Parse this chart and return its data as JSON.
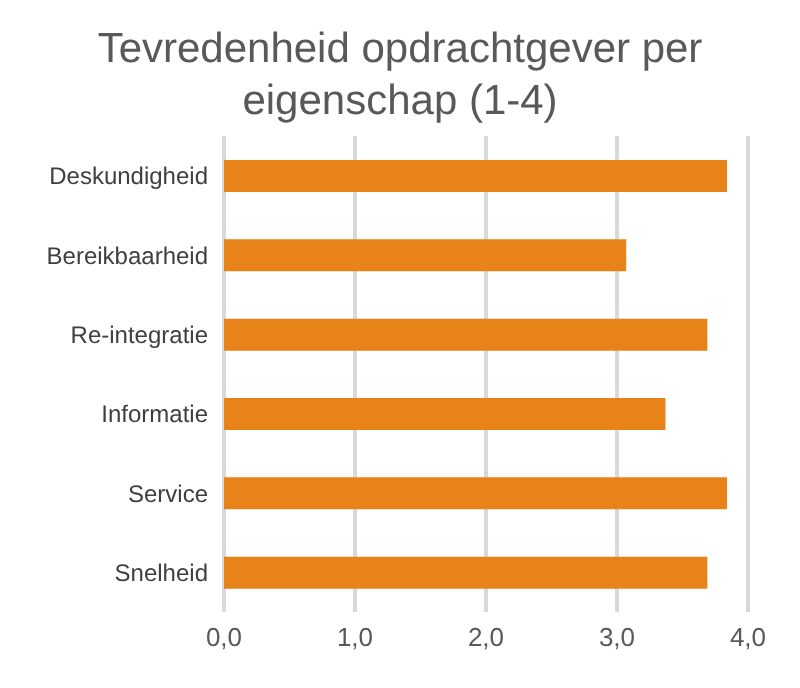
{
  "chart_data": {
    "type": "bar",
    "orientation": "horizontal",
    "title": "Tevredenheid opdrachtgever per eigenschap (1-4)",
    "categories": [
      "Deskundigheid",
      "Bereikbaarheid",
      "Re-integratie",
      "Informatie",
      "Service",
      "Snelheid"
    ],
    "values": [
      3.84,
      3.07,
      3.69,
      3.37,
      3.84,
      3.69
    ],
    "color": "#e8831a",
    "xlim": [
      0,
      4
    ],
    "xticks": [
      {
        "value": 0,
        "label": "0,0"
      },
      {
        "value": 1,
        "label": "1,0"
      },
      {
        "value": 2,
        "label": "2,0"
      },
      {
        "value": 3,
        "label": "3,0"
      },
      {
        "value": 4,
        "label": "4,0"
      }
    ],
    "grid": "x"
  }
}
